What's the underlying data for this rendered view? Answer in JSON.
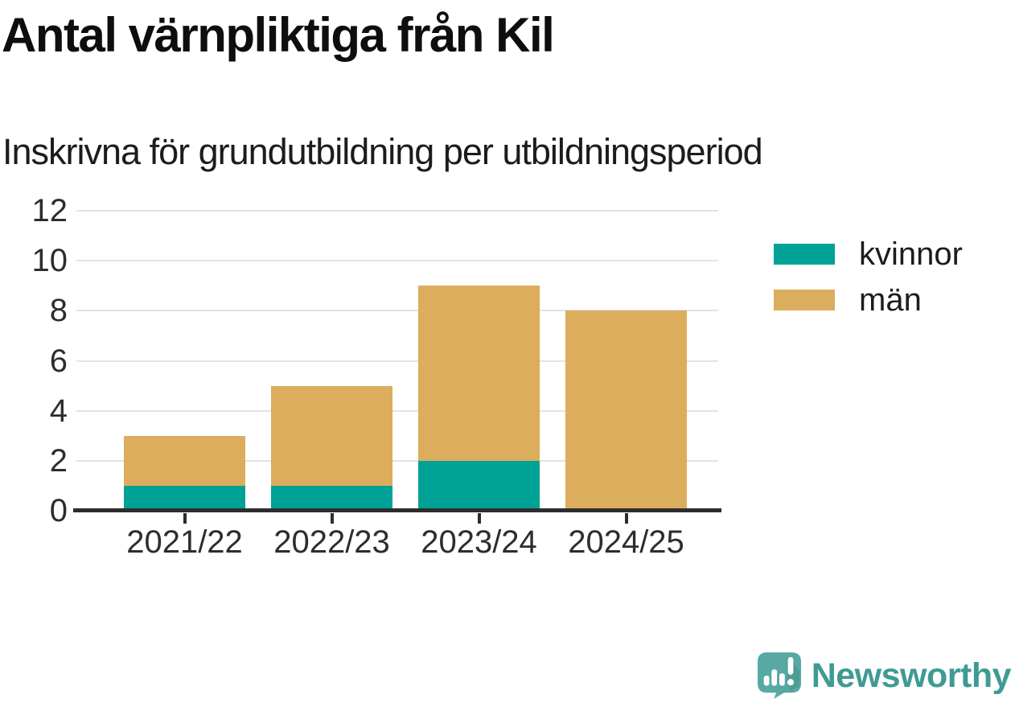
{
  "branding": {
    "wordmark": "Newsworthy",
    "brand_color": "#3f9a94",
    "icon_color": "#58a9a3"
  },
  "axis_color": "#2d2d2d",
  "grid_color": "#e3e3e3",
  "chart_data": {
    "type": "bar",
    "stacked": true,
    "title": "Antal värnpliktiga från Kil",
    "subtitle": "Inskrivna för grundutbildning per utbildningsperiod",
    "categories": [
      "2021/22",
      "2022/23",
      "2023/24",
      "2024/25"
    ],
    "series": [
      {
        "name": "kvinnor",
        "color": "#00a296",
        "values": [
          1,
          1,
          2,
          0
        ]
      },
      {
        "name": "män",
        "color": "#dbad5c",
        "values": [
          2,
          4,
          7,
          8
        ]
      }
    ],
    "totals": [
      3,
      5,
      9,
      8
    ],
    "xlabel": "",
    "ylabel": "",
    "ylim": [
      0,
      12
    ],
    "ytick_step": 2,
    "yticks": [
      0,
      2,
      4,
      6,
      8,
      10,
      12
    ],
    "grid": true,
    "legend_position": "right"
  }
}
